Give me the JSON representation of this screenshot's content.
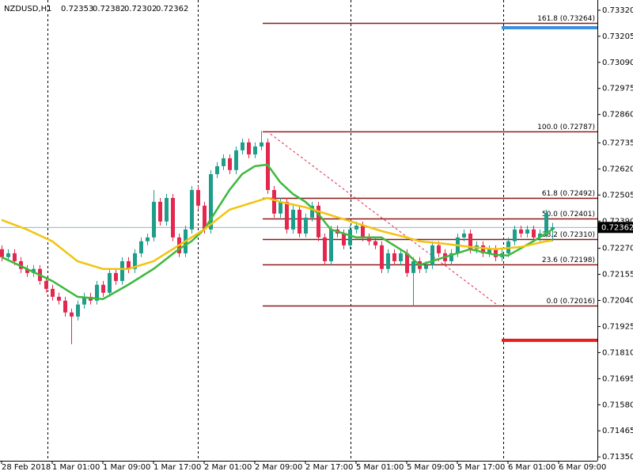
{
  "chart_data": {
    "type": "candlestick",
    "title": "NZDUSD,H1",
    "open": [
      0.72266,
      0.72231,
      0.72248,
      0.72213,
      0.72179,
      0.72161,
      0.72179,
      0.72126,
      0.72091,
      0.72056,
      0.72039,
      0.71987,
      0.71969,
      0.72022,
      0.72056,
      0.72039,
      0.72109,
      0.72074,
      0.72161,
      0.72126,
      0.72213,
      0.72179,
      0.72248,
      0.72301,
      0.72318,
      0.72475,
      0.72388,
      0.72492,
      0.72318,
      0.72248,
      0.72353,
      0.72527,
      0.72458,
      0.72353,
      0.72597,
      0.72632,
      0.72667,
      0.72615,
      0.72702,
      0.72737,
      0.72684,
      0.72719,
      0.72737,
      0.72527,
      0.72423,
      0.72475,
      0.72353,
      0.7244,
      0.72335,
      0.72405,
      0.72458,
      0.72318,
      0.72213,
      0.72353,
      0.72335,
      0.72283,
      0.72353,
      0.7237,
      0.72318,
      0.72301,
      0.72283,
      0.72179,
      0.72248,
      0.72213,
      0.72248,
      0.72161,
      0.72213,
      0.72179,
      0.72196,
      0.72283,
      0.72248,
      0.72213,
      0.72248,
      0.72318,
      0.72335,
      0.72266,
      0.72283,
      0.72248,
      0.72266,
      0.72231,
      0.72248,
      0.72301,
      0.72353,
      0.72335,
      0.72353,
      0.72318,
      0.72335,
      0.72353
    ],
    "high": [
      0.72283,
      0.72266,
      0.72266,
      0.72231,
      0.72196,
      0.72196,
      0.72196,
      0.72144,
      0.72109,
      0.72074,
      0.72056,
      0.72004,
      0.72039,
      0.72074,
      0.72074,
      0.72126,
      0.72126,
      0.72179,
      0.72179,
      0.72231,
      0.72231,
      0.72266,
      0.72318,
      0.72335,
      0.72527,
      0.72492,
      0.7251,
      0.7251,
      0.72335,
      0.7237,
      0.72545,
      0.72545,
      0.72475,
      0.72615,
      0.7265,
      0.72684,
      0.72684,
      0.72719,
      0.72754,
      0.72754,
      0.72737,
      0.72787,
      0.72754,
      0.72545,
      0.72492,
      0.72492,
      0.72458,
      0.72458,
      0.72423,
      0.72475,
      0.72475,
      0.72335,
      0.7237,
      0.7237,
      0.72353,
      0.7237,
      0.72388,
      0.72388,
      0.72335,
      0.72318,
      0.72301,
      0.72266,
      0.72266,
      0.72266,
      0.72266,
      0.72231,
      0.72231,
      0.72213,
      0.72301,
      0.72301,
      0.72266,
      0.72266,
      0.72335,
      0.72353,
      0.72353,
      0.72301,
      0.72301,
      0.72283,
      0.72283,
      0.72266,
      0.72318,
      0.7237,
      0.7237,
      0.7237,
      0.7237,
      0.72353,
      0.7244,
      0.72382
    ],
    "low": [
      0.72213,
      0.72213,
      0.72196,
      0.72161,
      0.72144,
      0.72144,
      0.72109,
      0.72074,
      0.72039,
      0.72022,
      0.71969,
      0.71847,
      0.71952,
      0.72004,
      0.72022,
      0.72022,
      0.72056,
      0.72056,
      0.72109,
      0.72109,
      0.72161,
      0.72161,
      0.72231,
      0.72283,
      0.72301,
      0.7237,
      0.7237,
      0.72301,
      0.72231,
      0.72231,
      0.72335,
      0.7244,
      0.72335,
      0.72335,
      0.7258,
      0.72615,
      0.72597,
      0.72597,
      0.72684,
      0.72667,
      0.72667,
      0.72702,
      0.7251,
      0.72405,
      0.72405,
      0.72335,
      0.72335,
      0.72318,
      0.72318,
      0.72388,
      0.72301,
      0.72196,
      0.72196,
      0.72318,
      0.72266,
      0.72266,
      0.72335,
      0.72301,
      0.72283,
      0.72266,
      0.72161,
      0.72161,
      0.72196,
      0.72196,
      0.72144,
      0.72016,
      0.72161,
      0.72161,
      0.72179,
      0.72231,
      0.72196,
      0.72196,
      0.72231,
      0.72301,
      0.72248,
      0.72248,
      0.72231,
      0.72231,
      0.72213,
      0.72213,
      0.72231,
      0.72283,
      0.72318,
      0.72318,
      0.72301,
      0.72301,
      0.72318,
      0.72302
    ],
    "close": [
      0.72231,
      0.72248,
      0.72213,
      0.72179,
      0.72161,
      0.72179,
      0.72126,
      0.72091,
      0.72056,
      0.72039,
      0.71987,
      0.71969,
      0.72022,
      0.72056,
      0.72039,
      0.72109,
      0.72074,
      0.72161,
      0.72126,
      0.72213,
      0.72179,
      0.72248,
      0.72301,
      0.72318,
      0.72475,
      0.72388,
      0.72492,
      0.72318,
      0.72248,
      0.72353,
      0.72527,
      0.72458,
      0.72353,
      0.72597,
      0.72632,
      0.72667,
      0.72615,
      0.72702,
      0.72737,
      0.72684,
      0.72719,
      0.72737,
      0.72527,
      0.72423,
      0.72475,
      0.72353,
      0.7244,
      0.72335,
      0.72405,
      0.72458,
      0.72318,
      0.72213,
      0.72353,
      0.72335,
      0.72283,
      0.72353,
      0.7237,
      0.72318,
      0.72301,
      0.72283,
      0.72179,
      0.72248,
      0.72213,
      0.72248,
      0.72161,
      0.72213,
      0.72179,
      0.72196,
      0.72283,
      0.72248,
      0.72213,
      0.72248,
      0.72318,
      0.72335,
      0.72266,
      0.72283,
      0.72248,
      0.72266,
      0.72231,
      0.72248,
      0.72301,
      0.72353,
      0.72335,
      0.72353,
      0.72318,
      0.72335,
      0.72423,
      0.72362
    ],
    "up_color": "#1e9e8a",
    "down_color": "#e3274e",
    "ylim": [
      0.71333,
      0.73365
    ],
    "yticks": [
      {
        "value": 0.7332,
        "label": "0.73320"
      },
      {
        "value": 0.73205,
        "label": "0.73205"
      },
      {
        "value": 0.7309,
        "label": "0.73090"
      },
      {
        "value": 0.72975,
        "label": "0.72975"
      },
      {
        "value": 0.7286,
        "label": "0.72860"
      },
      {
        "value": 0.72735,
        "label": "0.72735"
      },
      {
        "value": 0.7262,
        "label": "0.72620"
      },
      {
        "value": 0.72505,
        "label": "0.72505"
      },
      {
        "value": 0.7239,
        "label": "0.72390"
      },
      {
        "value": 0.7227,
        "label": "0.72270"
      },
      {
        "value": 0.72155,
        "label": "0.72155"
      },
      {
        "value": 0.7204,
        "label": "0.72040"
      },
      {
        "value": 0.71925,
        "label": "0.71925"
      },
      {
        "value": 0.7181,
        "label": "0.71810"
      },
      {
        "value": 0.71695,
        "label": "0.71695"
      },
      {
        "value": 0.7158,
        "label": "0.71580"
      },
      {
        "value": 0.71465,
        "label": "0.71465"
      },
      {
        "value": 0.7135,
        "label": "0.71350"
      }
    ],
    "xticks": [
      {
        "value": 0,
        "label": "28 Feb 2018"
      },
      {
        "value": 8,
        "label": "1 Mar 01:00"
      },
      {
        "value": 16,
        "label": "1 Mar 09:00"
      },
      {
        "value": 24,
        "label": "1 Mar 17:00"
      },
      {
        "value": 32,
        "label": "2 Mar 01:00"
      },
      {
        "value": 40,
        "label": "2 Mar 09:00"
      },
      {
        "value": 48,
        "label": "2 Mar 17:00"
      },
      {
        "value": 56,
        "label": "5 Mar 01:00"
      },
      {
        "value": 64,
        "label": "5 Mar 09:00"
      },
      {
        "value": 72,
        "label": "5 Mar 17:00"
      },
      {
        "value": 80,
        "label": "6 Mar 01:00"
      },
      {
        "value": 88,
        "label": "6 Mar 09:00"
      }
    ],
    "series": [
      {
        "color": "#3cb93c",
        "x": [
          0,
          4,
          8,
          12,
          16,
          20,
          24,
          28,
          30,
          32,
          34,
          36,
          38,
          40,
          42,
          44,
          46,
          48,
          50,
          52,
          56,
          60,
          64,
          66,
          70,
          74,
          78,
          80,
          84,
          87
        ],
        "values": [
          0.72231,
          0.72179,
          0.72126,
          0.72056,
          0.72046,
          0.72109,
          0.72179,
          0.72266,
          0.72301,
          0.72353,
          0.7244,
          0.72527,
          0.72597,
          0.72632,
          0.72639,
          0.72562,
          0.7251,
          0.72475,
          0.72423,
          0.72353,
          0.72318,
          0.72318,
          0.72248,
          0.72196,
          0.72231,
          0.72266,
          0.72241,
          0.72238,
          0.72301,
          0.72353
        ]
      },
      {
        "color": "#f2c40f",
        "x": [
          0,
          4,
          8,
          12,
          16,
          20,
          24,
          28,
          32,
          36,
          40,
          42,
          44,
          48,
          52,
          56,
          60,
          64,
          66,
          70,
          74,
          78,
          82,
          86,
          87
        ],
        "values": [
          0.72395,
          0.72353,
          0.72301,
          0.72213,
          0.72179,
          0.72179,
          0.72213,
          0.72283,
          0.72353,
          0.7244,
          0.72475,
          0.72492,
          0.72475,
          0.72451,
          0.72416,
          0.72381,
          0.72346,
          0.72318,
          0.72301,
          0.7229,
          0.72276,
          0.72266,
          0.72276,
          0.72301,
          0.72304
        ]
      }
    ],
    "fib_levels": [
      {
        "value": 0.73264,
        "label": "161.8 (0.73264)"
      },
      {
        "value": 0.72787,
        "label": "100.0 (0.72787)"
      },
      {
        "value": 0.72492,
        "label": "61.8 (0.72492)"
      },
      {
        "value": 0.72401,
        "label": "50.0 (0.72401)"
      },
      {
        "value": 0.7231,
        "label": "38.2 (0.72310)"
      },
      {
        "value": 0.72198,
        "label": "23.6 (0.72198)"
      },
      {
        "value": 0.72016,
        "label": "0.0 (0.72016)"
      }
    ],
    "fib_color": "#8b1a1a",
    "levels": [
      {
        "value": 0.73243,
        "color": "#3d8fe0"
      },
      {
        "value": 0.71864,
        "color": "#e81d1d"
      }
    ]
  }
}
